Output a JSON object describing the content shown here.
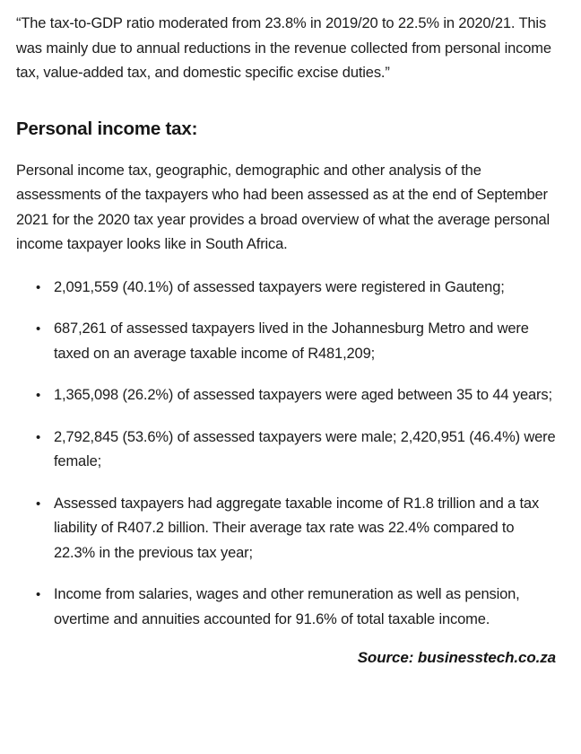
{
  "quote": "“The tax-to-GDP ratio moderated from 23.8% in 2019/20 to 22.5% in 2020/21. This was mainly due to annual reductions in the revenue collected from personal income tax, value-added tax, and domestic specific excise duties.”",
  "section": {
    "heading": "Personal income tax:",
    "intro": "Personal income tax, geographic, demographic and other analysis of the assessments of the taxpayers who had been assessed as at the end of September 2021 for the 2020 tax year provides a broad overview of what the average personal income taxpayer looks like in South Africa.",
    "bullets": [
      "2,091,559 (40.1%) of assessed taxpayers were registered in Gauteng;",
      "687,261 of assessed taxpayers lived in the Johannesburg Metro and were taxed on an average taxable income of R481,209;",
      "1,365,098 (26.2%) of assessed taxpayers were aged between 35 to 44 years;",
      "2,792,845 (53.6%) of assessed taxpayers were male; 2,420,951 (46.4%) were female;",
      "Assessed taxpayers had aggregate taxable income of R1.8 trillion and a tax liability of R407.2 billion. Their average tax rate was 22.4% compared to 22.3% in the previous tax year;",
      "Income from salaries, wages and other remuneration as well as pension, overtime and annuities accounted for 91.6% of total taxable income."
    ]
  },
  "source_line": "Source: businesstech.co.za",
  "icons": {
    "bullet_char": "•"
  },
  "colors": {
    "background": "#ffffff",
    "text": "#1c1c1c"
  }
}
